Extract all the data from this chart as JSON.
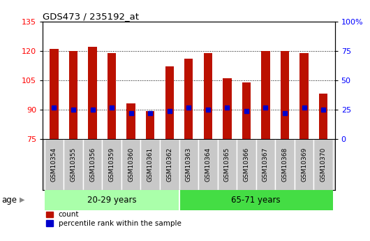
{
  "title": "GDS473 / 235192_at",
  "samples": [
    "GSM10354",
    "GSM10355",
    "GSM10356",
    "GSM10359",
    "GSM10360",
    "GSM10361",
    "GSM10362",
    "GSM10363",
    "GSM10364",
    "GSM10365",
    "GSM10366",
    "GSM10367",
    "GSM10368",
    "GSM10369",
    "GSM10370"
  ],
  "count_values": [
    121,
    120,
    122,
    119,
    93,
    89,
    112,
    116,
    119,
    106,
    104,
    120,
    120,
    119,
    98
  ],
  "percentile_values": [
    91,
    90,
    90,
    91,
    88,
    88,
    89,
    91,
    90,
    91,
    89,
    91,
    88,
    91,
    90
  ],
  "bar_bottom": 75,
  "ylim_left": [
    75,
    135
  ],
  "ylim_right": [
    0,
    100
  ],
  "yticks_left": [
    75,
    90,
    105,
    120,
    135
  ],
  "yticks_right": [
    0,
    25,
    50,
    75,
    100
  ],
  "group1_label": "20-29 years",
  "group2_label": "65-71 years",
  "group1_count": 7,
  "group2_count": 8,
  "bar_color": "#BB1100",
  "percentile_color": "#0000CC",
  "tick_bg_color": "#C8C8C8",
  "group1_color": "#AAFFAA",
  "group2_color": "#44DD44",
  "legend_count_label": "count",
  "legend_percentile_label": "percentile rank within the sample",
  "age_label": "age"
}
